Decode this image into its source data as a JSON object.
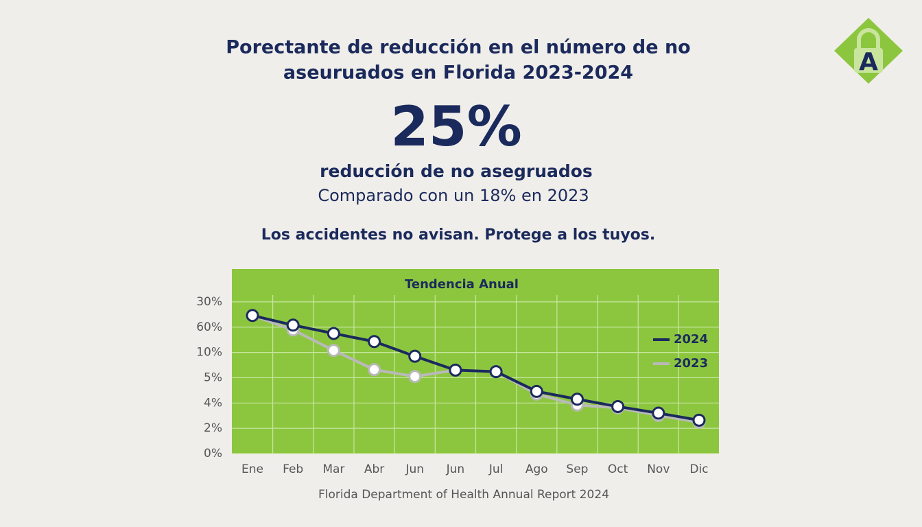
{
  "logo": {
    "letter": "A"
  },
  "header": {
    "title_lines": [
      "Porectante de reducción en el número de no",
      "aseuruados en Florida 2023-2024"
    ],
    "big_number": "25%",
    "big_label": "reducción de no asegruados",
    "comparison": "Comparado con un 18% en 2023",
    "tagline": "Los accidentes no avisan. Protege a los tuyos."
  },
  "chart_data": {
    "type": "line",
    "title": "Tendencia Anual",
    "categories": [
      "Ene",
      "Feb",
      "Mar",
      "Abr",
      "Jun",
      "Jun",
      "Jul",
      "Ago",
      "Sep",
      "Oct",
      "Nov",
      "Dic"
    ],
    "series": [
      {
        "name": "2024",
        "color": "#1b2a5c",
        "values": [
          5.46,
          5.08,
          4.75,
          4.43,
          3.85,
          3.3,
          3.24,
          2.46,
          2.15,
          1.86,
          1.6,
          1.32
        ]
      },
      {
        "name": "2023",
        "color": "#b9b9b9",
        "values": [
          5.46,
          4.89,
          4.08,
          3.32,
          3.05,
          3.3,
          3.24,
          2.35,
          1.92,
          1.81,
          1.51,
          1.24
        ]
      }
    ],
    "ylim": [
      0,
      7.3
    ],
    "yticks": [
      {
        "value": 0,
        "label": "0%"
      },
      {
        "value": 1,
        "label": "2%"
      },
      {
        "value": 2,
        "label": "4%"
      },
      {
        "value": 3,
        "label": "5%"
      },
      {
        "value": 4,
        "label": "10%"
      },
      {
        "value": 5,
        "label": "60%"
      },
      {
        "value": 6,
        "label": "30%"
      }
    ],
    "grid": true,
    "legend": "right",
    "background": "#8cc63f"
  },
  "footer": {
    "source": "Florida Department of Health Annual Report 2024"
  }
}
